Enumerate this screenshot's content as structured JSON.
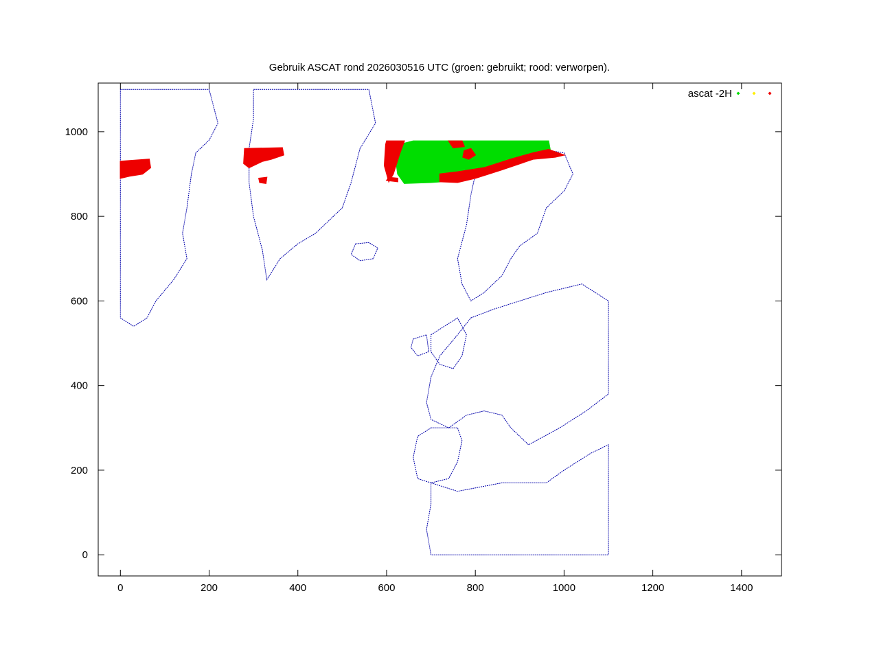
{
  "chart_data": {
    "type": "scatter",
    "title": "Gebruik ASCAT rond 2026030516 UTC (groen: gebruikt; rood: verworpen).",
    "xlabel": "",
    "ylabel": "",
    "xlim": [
      -50,
      1490
    ],
    "ylim": [
      -50,
      1115
    ],
    "xticks": [
      0,
      200,
      400,
      600,
      800,
      1000,
      1200,
      1400
    ],
    "yticks": [
      0,
      200,
      400,
      600,
      800,
      1000
    ],
    "grid": false,
    "legend": {
      "title": "ascat -2H",
      "placement": "top-right"
    },
    "series": [
      {
        "color": "#00dd00",
        "regions": [
          {
            "name": "green-swath",
            "polygon": [
              [
                660,
                978
              ],
              [
                965,
                978
              ],
              [
                970,
                950
              ],
              [
                905,
                935
              ],
              [
                860,
                915
              ],
              [
                810,
                905
              ],
              [
                760,
                885
              ],
              [
                700,
                880
              ],
              [
                640,
                878
              ],
              [
                625,
                900
              ],
              [
                620,
                940
              ],
              [
                630,
                970
              ]
            ]
          }
        ]
      },
      {
        "color": "#ffee00",
        "regions": []
      },
      {
        "color": "#ee0000",
        "regions": [
          {
            "name": "red-west-labrador",
            "polygon": [
              [
                0,
                930
              ],
              [
                65,
                935
              ],
              [
                68,
                915
              ],
              [
                50,
                900
              ],
              [
                20,
                895
              ],
              [
                0,
                890
              ]
            ]
          },
          {
            "name": "red-greenland-west",
            "polygon": [
              [
                280,
                960
              ],
              [
                365,
                962
              ],
              [
                368,
                945
              ],
              [
                340,
                935
              ],
              [
                320,
                930
              ],
              [
                300,
                920
              ],
              [
                290,
                915
              ],
              [
                278,
                925
              ]
            ]
          },
          {
            "name": "red-greenland-spot",
            "polygon": [
              [
                312,
                890
              ],
              [
                330,
                892
              ],
              [
                328,
                878
              ],
              [
                314,
                880
              ]
            ]
          },
          {
            "name": "red-atlantic-west-edge",
            "polygon": [
              [
                600,
                978
              ],
              [
                640,
                978
              ],
              [
                630,
                950
              ],
              [
                615,
                900
              ],
              [
                605,
                882
              ],
              [
                595,
                920
              ],
              [
                598,
                970
              ]
            ]
          },
          {
            "name": "red-swath-south-edge",
            "polygon": [
              [
                720,
                900
              ],
              [
                760,
                905
              ],
              [
                820,
                915
              ],
              [
                880,
                935
              ],
              [
                930,
                950
              ],
              [
                965,
                958
              ],
              [
                1000,
                945
              ],
              [
                980,
                940
              ],
              [
                930,
                935
              ],
              [
                860,
                910
              ],
              [
                800,
                890
              ],
              [
                760,
                880
              ],
              [
                720,
                882
              ]
            ]
          },
          {
            "name": "red-swath-north-patch",
            "polygon": [
              [
                740,
                978
              ],
              [
                770,
                978
              ],
              [
                775,
                965
              ],
              [
                750,
                962
              ]
            ]
          },
          {
            "name": "red-ring",
            "polygon": [
              [
                775,
                955
              ],
              [
                790,
                960
              ],
              [
                800,
                945
              ],
              [
                785,
                935
              ],
              [
                772,
                940
              ]
            ]
          },
          {
            "name": "red-bottom-left",
            "polygon": [
              [
                600,
                885
              ],
              [
                625,
                882
              ],
              [
                625,
                890
              ],
              [
                605,
                892
              ]
            ]
          }
        ]
      }
    ],
    "map_background": {
      "color": "#0000aa",
      "description_key": "coastlines"
    }
  }
}
